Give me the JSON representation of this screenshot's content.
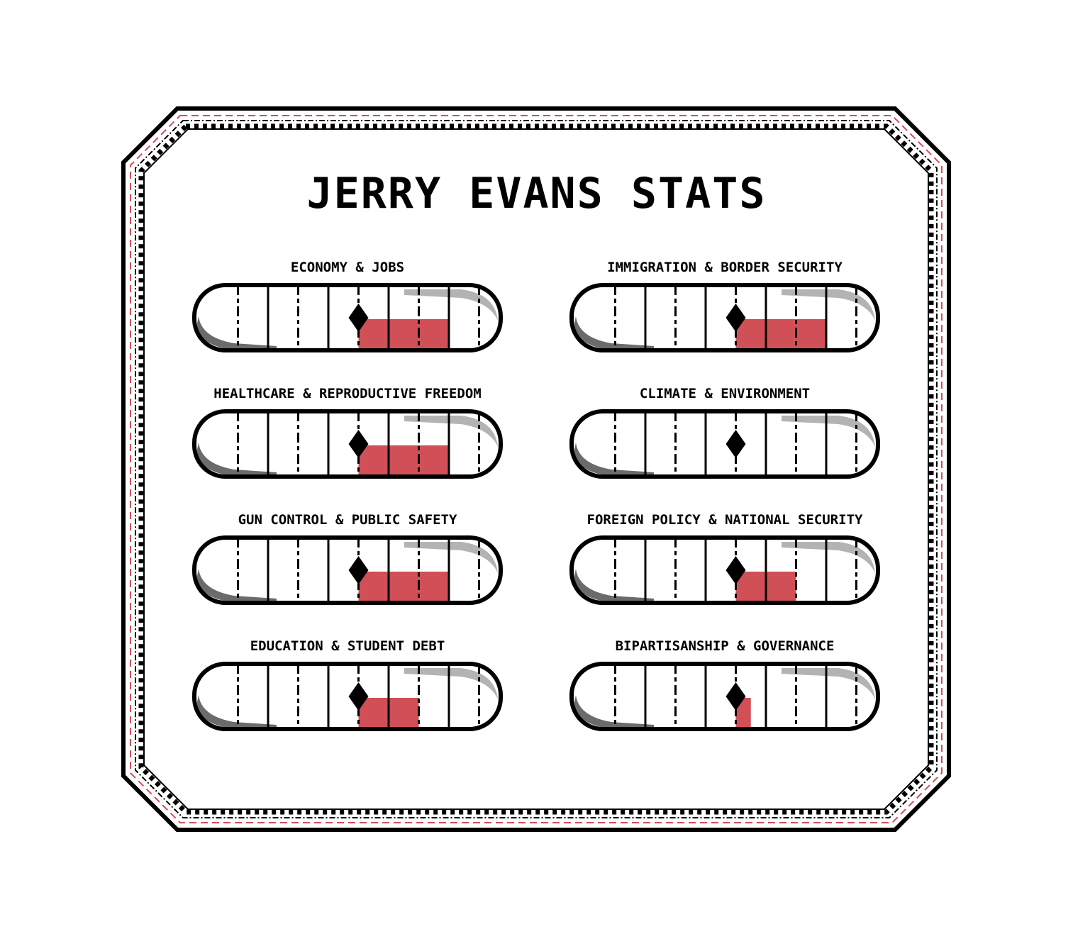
{
  "title": "JERRY EVANS STATS",
  "colors": {
    "accent": "#d14f57",
    "ink": "#000000",
    "shade_dark": "#6b6b6b",
    "shade_light": "#b3b3b3"
  },
  "meter_scale": {
    "segments": 10,
    "center_segment": 5
  },
  "stats": [
    {
      "label": "ECONOMY & JOBS",
      "fill_segments": 3
    },
    {
      "label": "IMMIGRATION & BORDER SECURITY",
      "fill_segments": 3
    },
    {
      "label": "HEALTHCARE & REPRODUCTIVE FREEDOM",
      "fill_segments": 3
    },
    {
      "label": "CLIMATE & ENVIRONMENT",
      "fill_segments": 0
    },
    {
      "label": "GUN CONTROL & PUBLIC SAFETY",
      "fill_segments": 3
    },
    {
      "label": "FOREIGN POLICY & NATIONAL SECURITY",
      "fill_segments": 2
    },
    {
      "label": "EDUCATION & STUDENT DEBT",
      "fill_segments": 2
    },
    {
      "label": "BIPARTISANSHIP & GOVERNANCE",
      "fill_segments": 0.5
    }
  ]
}
